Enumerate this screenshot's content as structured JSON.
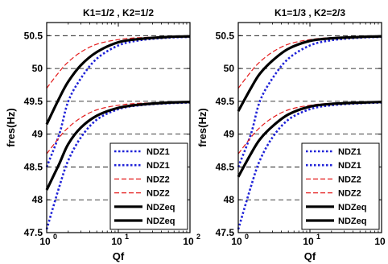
{
  "chart_data": [
    {
      "type": "line",
      "title": "K1=1/2 , K2=1/2",
      "xlabel": "Qf",
      "ylabel": "fres(Hz)",
      "xscale": "log",
      "xlim": [
        1,
        100
      ],
      "ylim": [
        47.5,
        50.7
      ],
      "yticks": [
        47.5,
        48,
        48.5,
        49,
        49.5,
        50,
        50.5
      ],
      "ytick_labels": [
        "47.5",
        "48",
        "48.5",
        "49",
        "49.5",
        "50",
        "50.5"
      ],
      "xtick_labels": [
        {
          "base": "10",
          "exp": "0"
        },
        {
          "base": "10",
          "exp": "1"
        },
        {
          "base": "10",
          "exp": "2"
        }
      ],
      "grid": "y-dashed",
      "legend_position": "bottom-right",
      "series": [
        {
          "name": "NDZ1",
          "color": "#1f22d8",
          "style": "dotted",
          "x": [
            1,
            1.5,
            2,
            3,
            5,
            10,
            20,
            50,
            100
          ],
          "y": [
            48.5,
            49.0,
            49.5,
            49.85,
            50.15,
            50.35,
            50.43,
            50.47,
            50.48
          ]
        },
        {
          "name": "NDZ1",
          "color": "#1f22d8",
          "style": "dotted",
          "x": [
            1,
            1.5,
            2,
            3,
            5,
            10,
            20,
            50,
            100
          ],
          "y": [
            47.55,
            48.2,
            48.6,
            48.95,
            49.22,
            49.38,
            49.44,
            49.47,
            49.48
          ]
        },
        {
          "name": "NDZ2",
          "color": "#e41a1a",
          "style": "dashed",
          "x": [
            1,
            1.5,
            2,
            3,
            5,
            10,
            20,
            50,
            100
          ],
          "y": [
            49.7,
            49.95,
            50.1,
            50.25,
            50.37,
            50.44,
            50.47,
            50.48,
            50.49
          ]
        },
        {
          "name": "NDZ2",
          "color": "#e41a1a",
          "style": "dashed",
          "x": [
            1,
            1.5,
            2,
            3,
            5,
            10,
            20,
            50,
            100
          ],
          "y": [
            48.7,
            48.95,
            49.1,
            49.25,
            49.37,
            49.44,
            49.47,
            49.48,
            49.49
          ]
        },
        {
          "name": "NDZeq",
          "color": "#000000",
          "style": "solid",
          "x": [
            1,
            1.5,
            2,
            3,
            5,
            10,
            20,
            50,
            100
          ],
          "y": [
            49.15,
            49.55,
            49.8,
            50.05,
            50.25,
            50.4,
            50.45,
            50.48,
            50.49
          ]
        },
        {
          "name": "NDZeq",
          "color": "#000000",
          "style": "solid",
          "x": [
            1,
            1.5,
            2,
            3,
            5,
            10,
            20,
            50,
            100
          ],
          "y": [
            48.15,
            48.55,
            48.85,
            49.1,
            49.28,
            49.4,
            49.45,
            49.48,
            49.49
          ]
        }
      ]
    },
    {
      "type": "line",
      "title": "K1=1/3 , K2=2/3",
      "xlabel": "Qf",
      "ylabel": "fres(Hz)",
      "xscale": "log",
      "xlim": [
        1,
        100
      ],
      "ylim": [
        47.5,
        50.7
      ],
      "yticks": [
        47.5,
        48,
        48.5,
        49,
        49.5,
        50,
        50.5
      ],
      "ytick_labels": [
        "47.5",
        "48",
        "48.5",
        "49",
        "49.5",
        "50",
        "50.5"
      ],
      "xtick_labels": [
        {
          "base": "10",
          "exp": "0"
        },
        {
          "base": "10",
          "exp": "1"
        },
        {
          "base": "10",
          "exp": "2"
        }
      ],
      "grid": "y-dashed",
      "legend_position": "bottom-right",
      "series": [
        {
          "name": "NDZ1",
          "color": "#1f22d8",
          "style": "dotted",
          "x": [
            1,
            1.5,
            2,
            3,
            5,
            10,
            20,
            50,
            100
          ],
          "y": [
            48.5,
            49.0,
            49.5,
            49.85,
            50.15,
            50.35,
            50.43,
            50.47,
            50.48
          ]
        },
        {
          "name": "NDZ1",
          "color": "#1f22d8",
          "style": "dotted",
          "x": [
            1,
            1.5,
            2,
            3,
            5,
            10,
            20,
            50,
            100
          ],
          "y": [
            47.55,
            48.2,
            48.6,
            48.95,
            49.22,
            49.38,
            49.44,
            49.47,
            49.48
          ]
        },
        {
          "name": "NDZ2",
          "color": "#e41a1a",
          "style": "dashed",
          "x": [
            1,
            1.5,
            2,
            3,
            5,
            10,
            20,
            50,
            100
          ],
          "y": [
            49.7,
            49.95,
            50.1,
            50.25,
            50.37,
            50.44,
            50.47,
            50.48,
            50.49
          ]
        },
        {
          "name": "NDZ2",
          "color": "#e41a1a",
          "style": "dashed",
          "x": [
            1,
            1.5,
            2,
            3,
            5,
            10,
            20,
            50,
            100
          ],
          "y": [
            48.7,
            48.95,
            49.1,
            49.25,
            49.37,
            49.44,
            49.47,
            49.48,
            49.49
          ]
        },
        {
          "name": "NDZeq",
          "color": "#000000",
          "style": "solid",
          "x": [
            1,
            1.5,
            2,
            3,
            5,
            10,
            20,
            50,
            100
          ],
          "y": [
            49.35,
            49.7,
            49.92,
            50.12,
            50.3,
            50.42,
            50.46,
            50.48,
            50.49
          ]
        },
        {
          "name": "NDZeq",
          "color": "#000000",
          "style": "solid",
          "x": [
            1,
            1.5,
            2,
            3,
            5,
            10,
            20,
            50,
            100
          ],
          "y": [
            48.35,
            48.7,
            48.92,
            49.12,
            49.3,
            49.42,
            49.46,
            49.48,
            49.49
          ]
        }
      ]
    }
  ]
}
